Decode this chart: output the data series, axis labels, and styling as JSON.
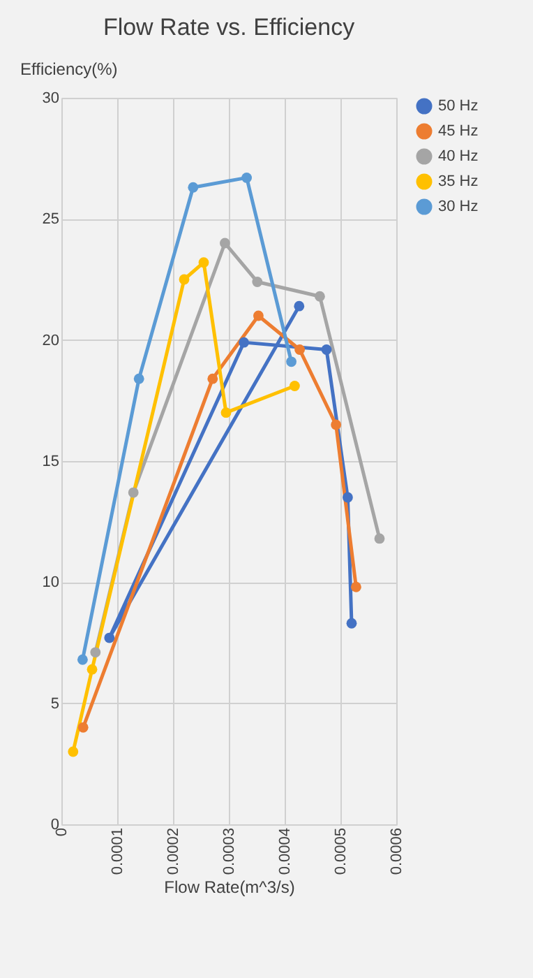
{
  "chart_data": {
    "type": "line",
    "title": "Flow Rate vs. Efficiency",
    "xlabel": "Flow Rate(m^3/s)",
    "ylabel": "Efficiency(%)",
    "xlim": [
      0,
      0.0006
    ],
    "xticks": [
      0,
      0.0001,
      0.0002,
      0.0003,
      0.0004,
      0.0005,
      0.0006
    ],
    "ylim": [
      0,
      30
    ],
    "yticks": [
      0,
      5,
      10,
      15,
      20,
      25,
      30
    ],
    "grid": true,
    "legend": "right",
    "marker": "circle",
    "line_style": "solid",
    "series": [
      {
        "name": "50 Hz",
        "color": "#4472c4",
        "x": [
          0.000426,
          8.6e-05,
          0.000327,
          0.000475,
          0.000513,
          0.00052
        ],
        "values": [
          21.4,
          7.7,
          19.9,
          19.6,
          13.5,
          8.3
        ]
      },
      {
        "name": "45 Hz",
        "color": "#ed7d31",
        "x": [
          3.9e-05,
          0.000271,
          0.000353,
          0.000427,
          0.000492,
          0.000528
        ],
        "values": [
          4.0,
          18.4,
          21.0,
          19.6,
          16.5,
          9.8
        ]
      },
      {
        "name": "40 Hz",
        "color": "#a5a5a5",
        "x": [
          6.1e-05,
          0.000129,
          0.000293,
          0.000351,
          0.000463,
          0.00057
        ],
        "values": [
          7.1,
          13.7,
          24.0,
          22.4,
          21.8,
          11.8
        ]
      },
      {
        "name": "35 Hz",
        "color": "#ffc000",
        "x": [
          2.1e-05,
          5.5e-05,
          0.00022,
          0.000255,
          0.000295,
          0.000418
        ],
        "values": [
          3.0,
          6.4,
          22.5,
          23.2,
          17.0,
          18.1
        ]
      },
      {
        "name": "30 Hz",
        "color": "#5b9bd5",
        "x": [
          3.8e-05,
          0.000139,
          0.000236,
          0.000332,
          0.000412
        ],
        "values": [
          6.8,
          18.4,
          26.3,
          26.7,
          19.1
        ]
      }
    ]
  }
}
